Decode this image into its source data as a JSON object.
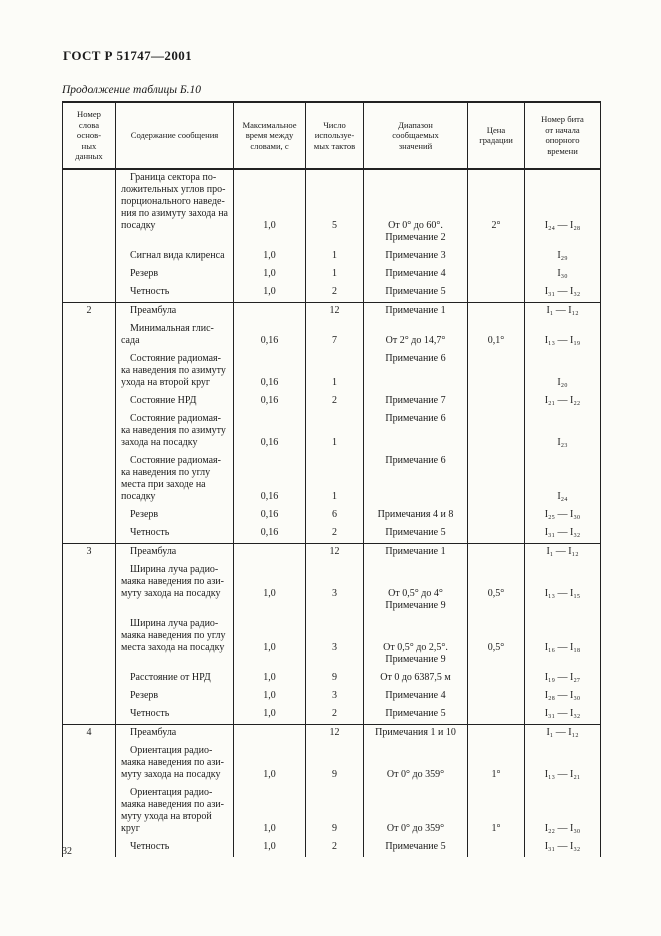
{
  "page": {
    "doc_title": "ГОСТ Р 51747—2001",
    "table_caption": "Продолжение таблицы Б.10",
    "page_number": "32"
  },
  "table": {
    "headers": [
      "Номер\nслова\nоснов-\nных\nданных",
      "Содержание сообщения",
      "Максимальное\nвремя между\nсловами, с",
      "Число\nиспользуе-\nмых тактов",
      "Диапазон\nсообщаемых\nзначений",
      "Цена\nградации",
      "Номер бита\nот начала\nопорного\nвремени"
    ],
    "sections": [
      {
        "num": "",
        "rows": [
          {
            "content": "Граница сектора по-\nложительных углов про-\nпорционального наведе-\nния по азимуту захода на\nпосадку",
            "time": "1,0",
            "cycles": "5",
            "range": "От 0° до 60°.\nПримечание 2",
            "grade": "2°",
            "bits": "I₂₄ — I₂₈",
            "raised": true
          },
          {
            "content": "Сигнал вида клиренса",
            "time": "1,0",
            "cycles": "1",
            "range": "Примечание 3",
            "grade": "",
            "bits": "I₂₉"
          },
          {
            "content": "Резерв",
            "time": "1,0",
            "cycles": "1",
            "range": "Примечание 4",
            "grade": "",
            "bits": "I₃₀"
          },
          {
            "content": "Четность",
            "time": "1,0",
            "cycles": "2",
            "range": "Примечание 5",
            "grade": "",
            "bits": "I₃₁ — I₃₂"
          }
        ]
      },
      {
        "num": "2",
        "rows": [
          {
            "content": "Преамбула",
            "time": "",
            "cycles": "12",
            "range": "Примечание 1",
            "grade": "",
            "bits": "I₁ — I₁₂"
          },
          {
            "content": "Минимальная глис-\nсада",
            "time": "0,16",
            "cycles": "7",
            "range": "От 2° до 14,7°",
            "grade": "0,1°",
            "bits": "I₁₃ — I₁₉"
          },
          {
            "content": "Состояние радиомая-\nка наведения по азимуту\nухода на второй круг",
            "time": "0,16",
            "cycles": "1",
            "range": "Примечание 6",
            "grade": "",
            "bits": "I₂₀",
            "range_top": true
          },
          {
            "content": "Состояние НРД",
            "time": "0,16",
            "cycles": "2",
            "range": "Примечание 7",
            "grade": "",
            "bits": "I₂₁ — I₂₂"
          },
          {
            "content": "Состояние радиомая-\nка наведения по азимуту\nзахода на посадку",
            "time": "0,16",
            "cycles": "1",
            "range": "Примечание 6",
            "grade": "",
            "bits": "I₂₃",
            "range_top": true
          },
          {
            "content": "Состояние радиомая-\nка наведения по углу\nместа при заходе на\nпосадку",
            "time": "0,16",
            "cycles": "1",
            "range": "Примечание 6",
            "grade": "",
            "bits": "I₂₄",
            "range_top": true
          },
          {
            "content": "Резерв",
            "time": "0,16",
            "cycles": "6",
            "range": "Примечания 4 и 8",
            "grade": "",
            "bits": "I₂₅ — I₃₀"
          },
          {
            "content": "Четность",
            "time": "0,16",
            "cycles": "2",
            "range": "Примечание 5",
            "grade": "",
            "bits": "I₃₁ — I₃₂"
          }
        ]
      },
      {
        "num": "3",
        "rows": [
          {
            "content": "Преамбула",
            "time": "",
            "cycles": "12",
            "range": "Примечание 1",
            "grade": "",
            "bits": "I₁ — I₁₂"
          },
          {
            "content": "Ширина луча радио-\nмаяка наведения по ази-\nмуту захода на посадку",
            "time": "1,0",
            "cycles": "3",
            "range": "От 0,5° до 4°\nПримечание 9",
            "grade": "0,5°",
            "bits": "I₁₃ — I₁₅",
            "raised": true
          },
          {
            "content": "Ширина луча радио-\nмаяка наведения по углу\nместа захода на посадку",
            "time": "1,0",
            "cycles": "3",
            "range": "От 0,5° до 2,5°.\nПримечание 9",
            "grade": "0,5°",
            "bits": "I₁₆ — I₁₈",
            "raised": true
          },
          {
            "content": "Расстояние от НРД",
            "time": "1,0",
            "cycles": "9",
            "range": "От 0 до 6387,5 м",
            "grade": "",
            "bits": "I₁₉ — I₂₇"
          },
          {
            "content": "Резерв",
            "time": "1,0",
            "cycles": "3",
            "range": "Примечание 4",
            "grade": "",
            "bits": "I₂₈ — I₃₀"
          },
          {
            "content": "Четность",
            "time": "1,0",
            "cycles": "2",
            "range": "Примечание 5",
            "grade": "",
            "bits": "I₃₁ — I₃₂"
          }
        ]
      },
      {
        "num": "4",
        "rows": [
          {
            "content": "Преамбула",
            "time": "",
            "cycles": "12",
            "range": "Примечания 1 и 10",
            "grade": "",
            "bits": "I₁ — I₁₂"
          },
          {
            "content": "Ориентация радио-\nмаяка наведения по ази-\nмуту захода на посадку",
            "time": "1,0",
            "cycles": "9",
            "range": "От 0° до 359°",
            "grade": "1°",
            "bits": "I₁₃ — I₂₁"
          },
          {
            "content": "Ориентация радио-\nмаяка наведения по ази-\nмуту ухода на второй круг",
            "time": "1,0",
            "cycles": "9",
            "range": "От 0° до 359°",
            "grade": "1°",
            "bits": "I₂₂ — I₃₀"
          },
          {
            "content": "Четность",
            "time": "1,0",
            "cycles": "2",
            "range": "Примечание 5",
            "grade": "",
            "bits": "I₃₁ — I₃₂"
          }
        ]
      }
    ]
  }
}
